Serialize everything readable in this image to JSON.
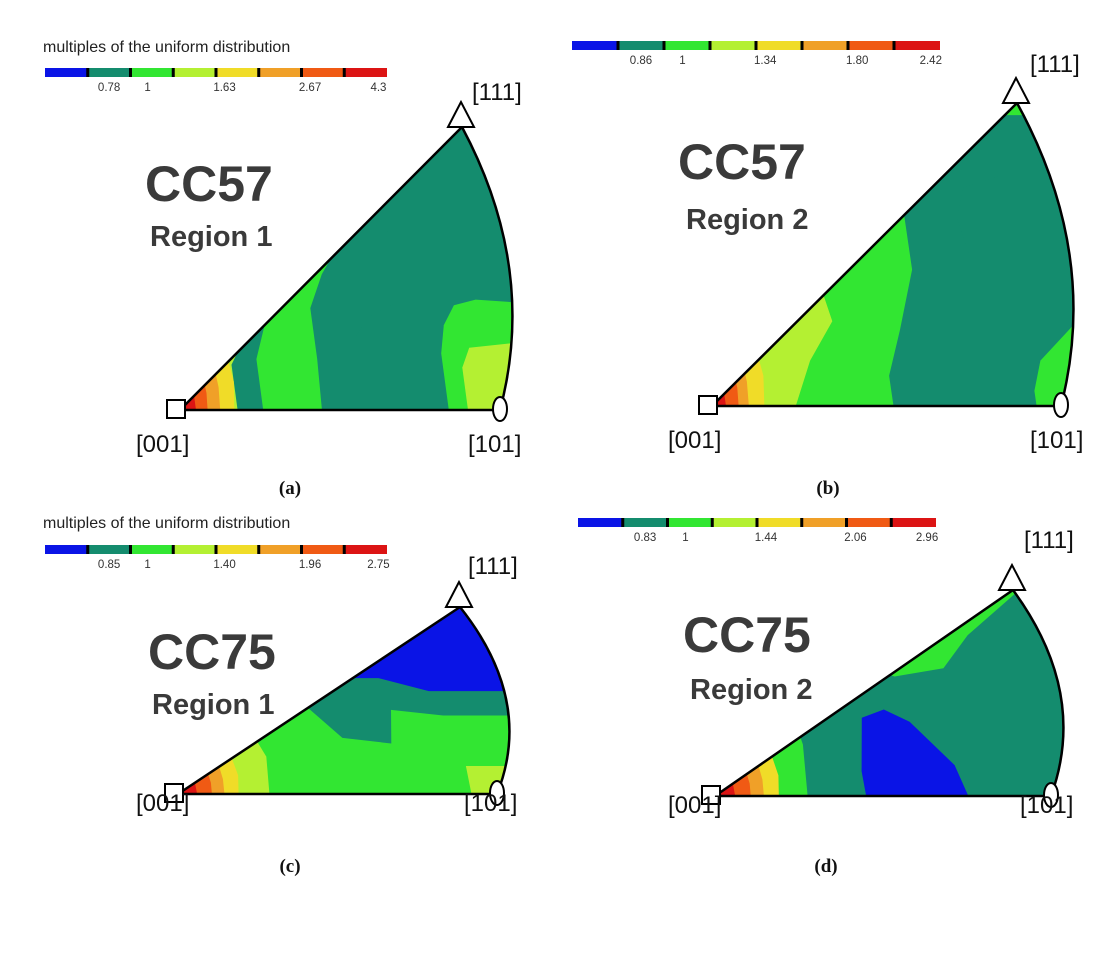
{
  "colorscale": {
    "colors": [
      "#0a14e6",
      "#148c6e",
      "#32e632",
      "#b4f032",
      "#f0dc28",
      "#f0a028",
      "#f05a14",
      "#dc1414"
    ],
    "separator": "#000000",
    "outline": "#000000"
  },
  "pole_labels": {
    "p001": "[001]",
    "p101": "[101]",
    "p111": "[111]"
  },
  "panels": [
    {
      "id": "a",
      "caption": "(a)",
      "sample": "CC57",
      "region": "Region 1",
      "legend_title": "multiples of the uniform distribution",
      "tick_labels": [
        "0.78",
        "1",
        "1.63",
        "2.67",
        "4.3"
      ]
    },
    {
      "id": "b",
      "caption": "(b)",
      "sample": "CC57",
      "region": "Region 2",
      "legend_title": "",
      "tick_labels": [
        "0.86",
        "1",
        "1.34",
        "1.80",
        "2.42"
      ]
    },
    {
      "id": "c",
      "caption": "(c)",
      "sample": "CC75",
      "region": "Region 1",
      "legend_title": "multiples of the uniform distribution",
      "tick_labels": [
        "0.85",
        "1",
        "1.40",
        "1.96",
        "2.75"
      ]
    },
    {
      "id": "d",
      "caption": "(d)",
      "sample": "CC75",
      "region": "Region 2",
      "legend_title": "",
      "tick_labels": [
        "0.83",
        "1",
        "1.44",
        "2.06",
        "2.96"
      ]
    }
  ]
}
